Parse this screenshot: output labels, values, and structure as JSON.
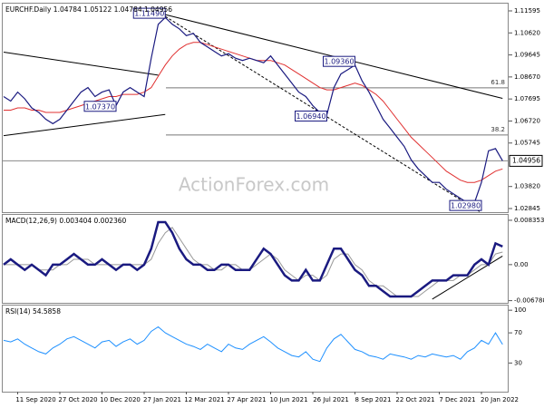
{
  "chart_data": [
    {
      "type": "line",
      "title": "EURCHF.Daily  1.04784 1.05122 1.04784 1.04956",
      "watermark": "ActionForex.com",
      "series": [
        {
          "color": "#1a1a80",
          "values": [
            1.078,
            1.076,
            1.08,
            1.077,
            1.073,
            1.071,
            1.068,
            1.066,
            1.068,
            1.072,
            1.076,
            1.08,
            1.082,
            1.078,
            1.08,
            1.081,
            1.074,
            1.08,
            1.082,
            1.08,
            1.078,
            1.095,
            1.11,
            1.113,
            1.11,
            1.108,
            1.105,
            1.106,
            1.102,
            1.1,
            1.098,
            1.096,
            1.097,
            1.095,
            1.094,
            1.095,
            1.094,
            1.093,
            1.096,
            1.092,
            1.088,
            1.084,
            1.08,
            1.078,
            1.074,
            1.071,
            1.07,
            1.082,
            1.088,
            1.09,
            1.092,
            1.085,
            1.08,
            1.074,
            1.068,
            1.064,
            1.06,
            1.056,
            1.05,
            1.046,
            1.043,
            1.04,
            1.04,
            1.037,
            1.035,
            1.033,
            1.031,
            1.031,
            1.04,
            1.054,
            1.055,
            1.0496
          ]
        },
        {
          "color": "#e03030",
          "values": [
            1.072,
            1.072,
            1.073,
            1.073,
            1.072,
            1.072,
            1.071,
            1.071,
            1.071,
            1.072,
            1.073,
            1.074,
            1.075,
            1.076,
            1.077,
            1.078,
            1.078,
            1.079,
            1.079,
            1.079,
            1.08,
            1.082,
            1.087,
            1.092,
            1.096,
            1.099,
            1.101,
            1.102,
            1.102,
            1.101,
            1.1,
            1.099,
            1.098,
            1.097,
            1.096,
            1.095,
            1.094,
            1.094,
            1.094,
            1.093,
            1.092,
            1.09,
            1.088,
            1.086,
            1.084,
            1.082,
            1.081,
            1.081,
            1.082,
            1.083,
            1.084,
            1.083,
            1.081,
            1.079,
            1.076,
            1.072,
            1.068,
            1.064,
            1.06,
            1.057,
            1.054,
            1.051,
            1.048,
            1.045,
            1.043,
            1.041,
            1.04,
            1.04,
            1.041,
            1.043,
            1.045,
            1.046
          ]
        }
      ],
      "ylim": [
        1.02845,
        1.11595
      ],
      "yticks": [
        1.11595,
        {
          "value": 1.1062,
          "label": "1.10620"
        },
        1.09645,
        {
          "value": 1.0867,
          "label": "1.08670"
        },
        1.07695,
        {
          "value": 1.0672,
          "label": "1.06720"
        },
        1.05745,
        {
          "value": 1.0382,
          "label": "1.03820"
        },
        1.02845
      ],
      "last_price": {
        "value": 1.04956,
        "label": "1.04956"
      },
      "levels": [
        {
          "value": 1.0819,
          "label": "61.8"
        },
        {
          "value": 1.061,
          "label": "38.2"
        }
      ],
      "annotations": [
        {
          "index": 23,
          "value": 1.1149,
          "label": "1.11490"
        },
        {
          "index": 16,
          "value": 1.0737,
          "label": "1.07370"
        },
        {
          "index": 46,
          "value": 1.0694,
          "label": "1.06940"
        },
        {
          "index": 50,
          "value": 1.0936,
          "label": "1.09360"
        },
        {
          "index": 68,
          "value": 1.0298,
          "label": "1.02980"
        }
      ],
      "trendlines": [
        {
          "x": [
            0,
            22
          ],
          "y": [
            1.0977,
            1.0875
          ]
        },
        {
          "x": [
            0,
            23
          ],
          "y": [
            1.0607,
            1.0701
          ]
        },
        {
          "x": [
            23,
            71
          ],
          "y": [
            1.1143,
            1.0772
          ]
        },
        {
          "x": [
            23,
            68
          ],
          "y": [
            1.1135,
            1.0266
          ],
          "dashed": true
        }
      ]
    },
    {
      "type": "line",
      "title": "MACD(12,26,9) 0.003404 0.002360",
      "series": [
        {
          "color": "#1a1a80",
          "values": [
            0.0,
            0.001,
            0.0,
            -0.001,
            0.0,
            -0.001,
            -0.002,
            0.0,
            0.0,
            0.001,
            0.002,
            0.001,
            0.0,
            0.0,
            0.001,
            0.0,
            -0.001,
            0.0,
            0.0,
            -0.001,
            0.0,
            0.003,
            0.008,
            0.008,
            0.006,
            0.003,
            0.001,
            0.0,
            0.0,
            -0.001,
            -0.001,
            0.0,
            0.0,
            -0.001,
            -0.001,
            -0.001,
            0.001,
            0.003,
            0.002,
            0.0,
            -0.002,
            -0.003,
            -0.003,
            -0.001,
            -0.003,
            -0.003,
            0.0,
            0.003,
            0.003,
            0.001,
            -0.001,
            -0.002,
            -0.004,
            -0.004,
            -0.005,
            -0.006,
            -0.006,
            -0.006,
            -0.006,
            -0.005,
            -0.004,
            -0.003,
            -0.003,
            -0.003,
            -0.002,
            -0.002,
            -0.002,
            0.0,
            0.001,
            0.0,
            0.004,
            0.003404
          ]
        },
        {
          "color": "#999999",
          "values": [
            0.0,
            0.0,
            0.0,
            0.0,
            0.0,
            -0.001,
            -0.001,
            -0.001,
            0.0,
            0.0,
            0.001,
            0.001,
            0.001,
            0.0,
            0.0,
            0.0,
            0.0,
            0.0,
            0.0,
            0.0,
            0.0,
            0.001,
            0.004,
            0.006,
            0.007,
            0.005,
            0.003,
            0.001,
            0.0,
            0.0,
            -0.001,
            -0.001,
            0.0,
            0.0,
            -0.001,
            -0.001,
            0.0,
            0.001,
            0.002,
            0.001,
            -0.001,
            -0.002,
            -0.003,
            -0.002,
            -0.002,
            -0.003,
            -0.002,
            0.001,
            0.002,
            0.002,
            0.0,
            -0.001,
            -0.003,
            -0.004,
            -0.004,
            -0.005,
            -0.006,
            -0.006,
            -0.006,
            -0.006,
            -0.005,
            -0.004,
            -0.003,
            -0.003,
            -0.003,
            -0.002,
            -0.002,
            -0.001,
            0.0,
            0.0,
            0.002,
            0.00236
          ]
        }
      ],
      "ylim": [
        -0.0072,
        0.0092
      ],
      "yticks": [
        0.008353,
        {
          "value": 0,
          "label": "0.00"
        },
        -0.006788
      ],
      "trendlines": [
        {
          "x": [
            61,
            71
          ],
          "y": [
            -0.0065,
            0.0016
          ]
        }
      ]
    },
    {
      "type": "line",
      "title": "RSI(14) 54.5858",
      "categories": [
        null,
        null,
        "11 Sep 2020",
        null,
        null,
        null,
        null,
        null,
        "27 Oct 2020",
        null,
        null,
        null,
        null,
        null,
        "10 Dec 2020",
        null,
        null,
        null,
        null,
        null,
        "27 Jan 2021",
        null,
        null,
        null,
        null,
        null,
        "12 Mar 2021",
        null,
        null,
        null,
        null,
        null,
        "27 Apr 2021",
        null,
        null,
        null,
        null,
        null,
        "10 Jun 2021",
        null,
        null,
        null,
        null,
        null,
        "26 Jul 2021",
        null,
        null,
        null,
        null,
        null,
        "8 Sep 2021",
        null,
        null,
        null,
        null,
        null,
        "22 Oct 2021",
        null,
        null,
        null,
        null,
        null,
        "7 Dec 2021",
        null,
        null,
        null,
        null,
        null,
        "20 Jan 2022",
        null,
        null,
        null
      ],
      "series": [
        {
          "color": "#1e90ff",
          "values": [
            60,
            58,
            62,
            55,
            50,
            45,
            42,
            50,
            55,
            62,
            65,
            60,
            55,
            50,
            58,
            60,
            52,
            58,
            62,
            55,
            60,
            72,
            78,
            70,
            65,
            60,
            55,
            52,
            48,
            55,
            50,
            45,
            55,
            50,
            48,
            55,
            60,
            65,
            58,
            50,
            45,
            40,
            38,
            45,
            35,
            32,
            50,
            62,
            68,
            58,
            48,
            45,
            40,
            38,
            35,
            42,
            40,
            38,
            35,
            40,
            38,
            42,
            40,
            38,
            40,
            35,
            45,
            50,
            60,
            55,
            70,
            54.5858
          ]
        }
      ],
      "ylim": [
        -8,
        105
      ],
      "yticks": [
        100,
        70,
        30
      ]
    }
  ]
}
